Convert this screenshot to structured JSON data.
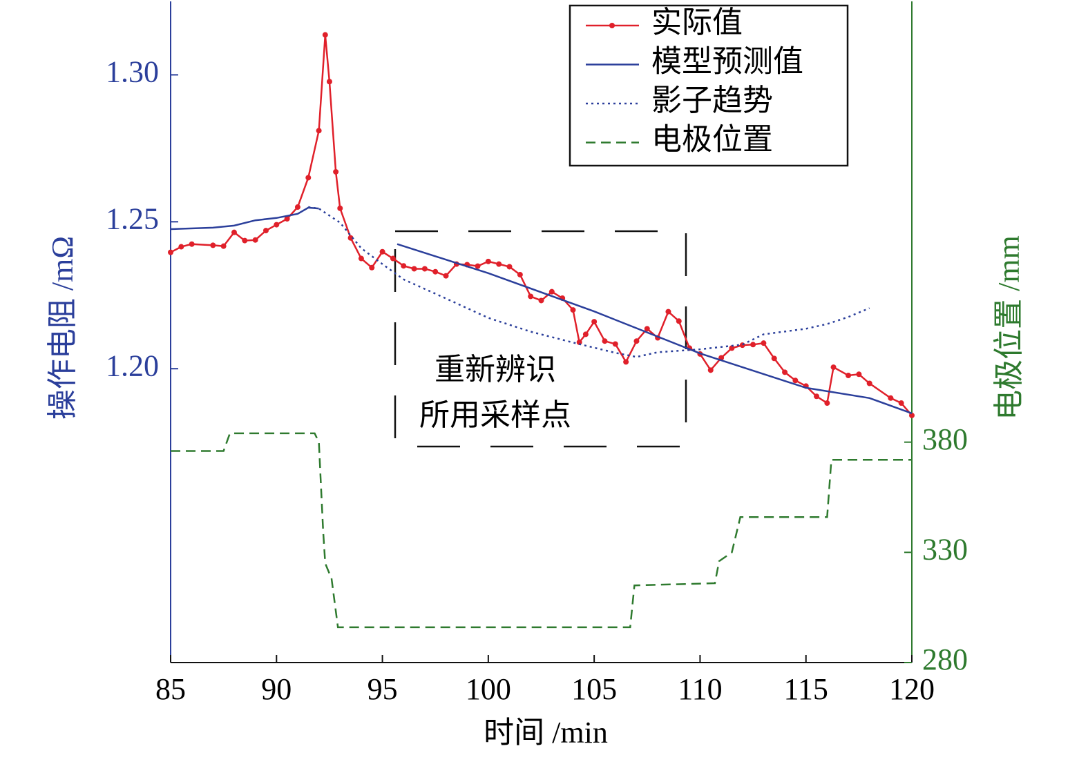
{
  "chart_data": {
    "type": "line",
    "xlabel": "时间 /min",
    "ylabel": "操作电阻 /mΩ",
    "y2label": "电极位置 /mm",
    "xlim": [
      85,
      120
    ],
    "xticks": [
      85,
      90,
      95,
      100,
      105,
      110,
      115,
      120
    ],
    "ylim": [
      1.1,
      1.325
    ],
    "yticks": [
      {
        "value": 1.2,
        "label": "1.20"
      },
      {
        "value": 1.25,
        "label": "1.25"
      },
      {
        "value": 1.3,
        "label": "1.30"
      }
    ],
    "y2lim": [
      280,
      580
    ],
    "y2ticks": [
      280,
      330,
      380
    ],
    "y_color": "#2b3f9b",
    "y2_color": "#2e7a2e",
    "grid": false,
    "legend": "upper right",
    "annotation_lines": [
      "重新辨识",
      "所用采样点"
    ],
    "series": [
      {
        "name": "实际值",
        "color": "#e0202a",
        "line_style": "solid",
        "marker": "circle",
        "x": [
          85,
          85.5,
          86,
          87,
          87.5,
          88,
          88.5,
          89,
          89.5,
          90,
          90.5,
          91,
          91.5,
          92,
          92.3,
          92.5,
          92.8,
          93,
          93.5,
          94,
          94.5,
          95,
          95.5,
          96,
          96.5,
          97,
          97.5,
          98,
          98.5,
          99,
          99.5,
          100,
          100.5,
          101,
          101.5,
          102,
          102.5,
          103,
          103.5,
          104,
          104.3,
          104.6,
          105,
          105.5,
          106,
          106.5,
          107,
          107.5,
          108,
          108.5,
          109,
          109.5,
          110,
          110.5,
          111,
          111.5,
          112,
          112.5,
          113,
          113.5,
          114,
          114.5,
          115,
          115.5,
          116,
          116.3,
          117,
          117.5,
          118,
          119,
          119.5,
          120
        ],
        "values": [
          1.2396,
          1.2415,
          1.2424,
          1.242,
          1.2417,
          1.2464,
          1.2436,
          1.2438,
          1.247,
          1.249,
          1.251,
          1.255,
          1.265,
          1.281,
          1.3136,
          1.2977,
          1.267,
          1.2546,
          1.2445,
          1.2375,
          1.2344,
          1.2398,
          1.2375,
          1.235,
          1.234,
          1.234,
          1.233,
          1.2316,
          1.2356,
          1.2354,
          1.2349,
          1.2365,
          1.2356,
          1.2347,
          1.232,
          1.2246,
          1.2232,
          1.2262,
          1.224,
          1.22,
          1.209,
          1.2117,
          1.216,
          1.2094,
          1.2084,
          1.2023,
          1.2094,
          1.2136,
          1.2105,
          1.2194,
          1.2162,
          1.207,
          1.205,
          1.1995,
          1.2037,
          1.207,
          1.208,
          1.2082,
          1.2087,
          1.2035,
          1.1988,
          1.196,
          1.1941,
          1.1906,
          1.1883,
          1.2005,
          1.1977,
          1.1981,
          1.195,
          1.19,
          1.1883,
          1.1841
        ]
      },
      {
        "name": "模型预测值",
        "color": "#2b3f9b",
        "line_style": "solid",
        "x": [
          85,
          87,
          88,
          89,
          90,
          91,
          91.5,
          92,
          94,
          95.7,
          100,
          105,
          110,
          115,
          118,
          120
        ],
        "values": [
          1.2475,
          1.248,
          1.2487,
          1.2505,
          1.2513,
          1.2527,
          1.2548,
          1.2545,
          null,
          1.2424,
          1.2325,
          1.2195,
          1.2052,
          1.1935,
          1.19,
          1.1848
        ]
      },
      {
        "name": "影子趋势",
        "color": "#2b3f9b",
        "line_style": "dotted",
        "x": [
          91.5,
          92,
          93,
          94,
          95,
          96,
          98,
          100,
          102,
          104,
          106,
          107,
          108,
          110,
          112,
          113,
          115,
          116,
          117,
          118
        ],
        "values": [
          1.255,
          1.2545,
          1.2497,
          1.241,
          1.2356,
          1.2304,
          1.2239,
          1.2173,
          1.2126,
          1.2089,
          1.2054,
          1.204,
          1.2056,
          1.2066,
          1.2082,
          1.2117,
          1.2136,
          1.2152,
          1.2176,
          1.2206
        ]
      },
      {
        "name": "电极位置",
        "color": "#2e7a2e",
        "line_style": "dashed",
        "axis": "y2",
        "x": [
          85,
          87.5,
          87.8,
          91.8,
          92,
          92.2,
          92.3,
          92.6,
          92.9,
          106.7,
          106.9,
          110.7,
          110.9,
          111.5,
          111.9,
          116,
          116.2,
          120
        ],
        "values": [
          376,
          376,
          384,
          384,
          380,
          340,
          325,
          318,
          296,
          296,
          315,
          316,
          326,
          330,
          346,
          346,
          372,
          372
        ]
      }
    ]
  }
}
